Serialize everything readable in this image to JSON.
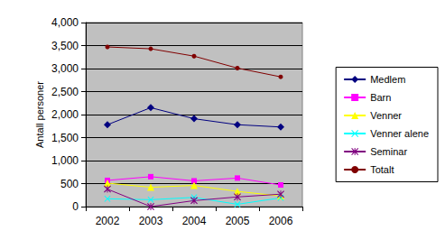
{
  "chart_data": {
    "type": "line",
    "y_label": "Antall personer",
    "categories": [
      "2002",
      "2003",
      "2004",
      "2005",
      "2006"
    ],
    "series": [
      {
        "name": "Medlem",
        "color": "#000080",
        "marker": "diamond",
        "values": [
          1780,
          2150,
          1910,
          1780,
          1730
        ]
      },
      {
        "name": "Barn",
        "color": "#FF00FF",
        "marker": "square",
        "values": [
          570,
          650,
          560,
          620,
          470
        ]
      },
      {
        "name": "Venner",
        "color": "#FFFF00",
        "marker": "triangle",
        "values": [
          510,
          420,
          460,
          330,
          230
        ]
      },
      {
        "name": "Venner alene",
        "color": "#00FFFF",
        "marker": "x",
        "values": [
          170,
          150,
          200,
          50,
          190
        ]
      },
      {
        "name": "Seminar",
        "color": "#800080",
        "marker": "star",
        "values": [
          380,
          0,
          130,
          210,
          270
        ]
      },
      {
        "name": "Totalt",
        "color": "#800000",
        "marker": "circle",
        "values": [
          3470,
          3430,
          3270,
          3010,
          2820
        ]
      }
    ],
    "ylim": [
      0,
      4000
    ],
    "yticks": [
      0,
      500,
      1000,
      1500,
      2000,
      2500,
      3000,
      3500,
      4000
    ],
    "grid": true,
    "legend": "right"
  }
}
